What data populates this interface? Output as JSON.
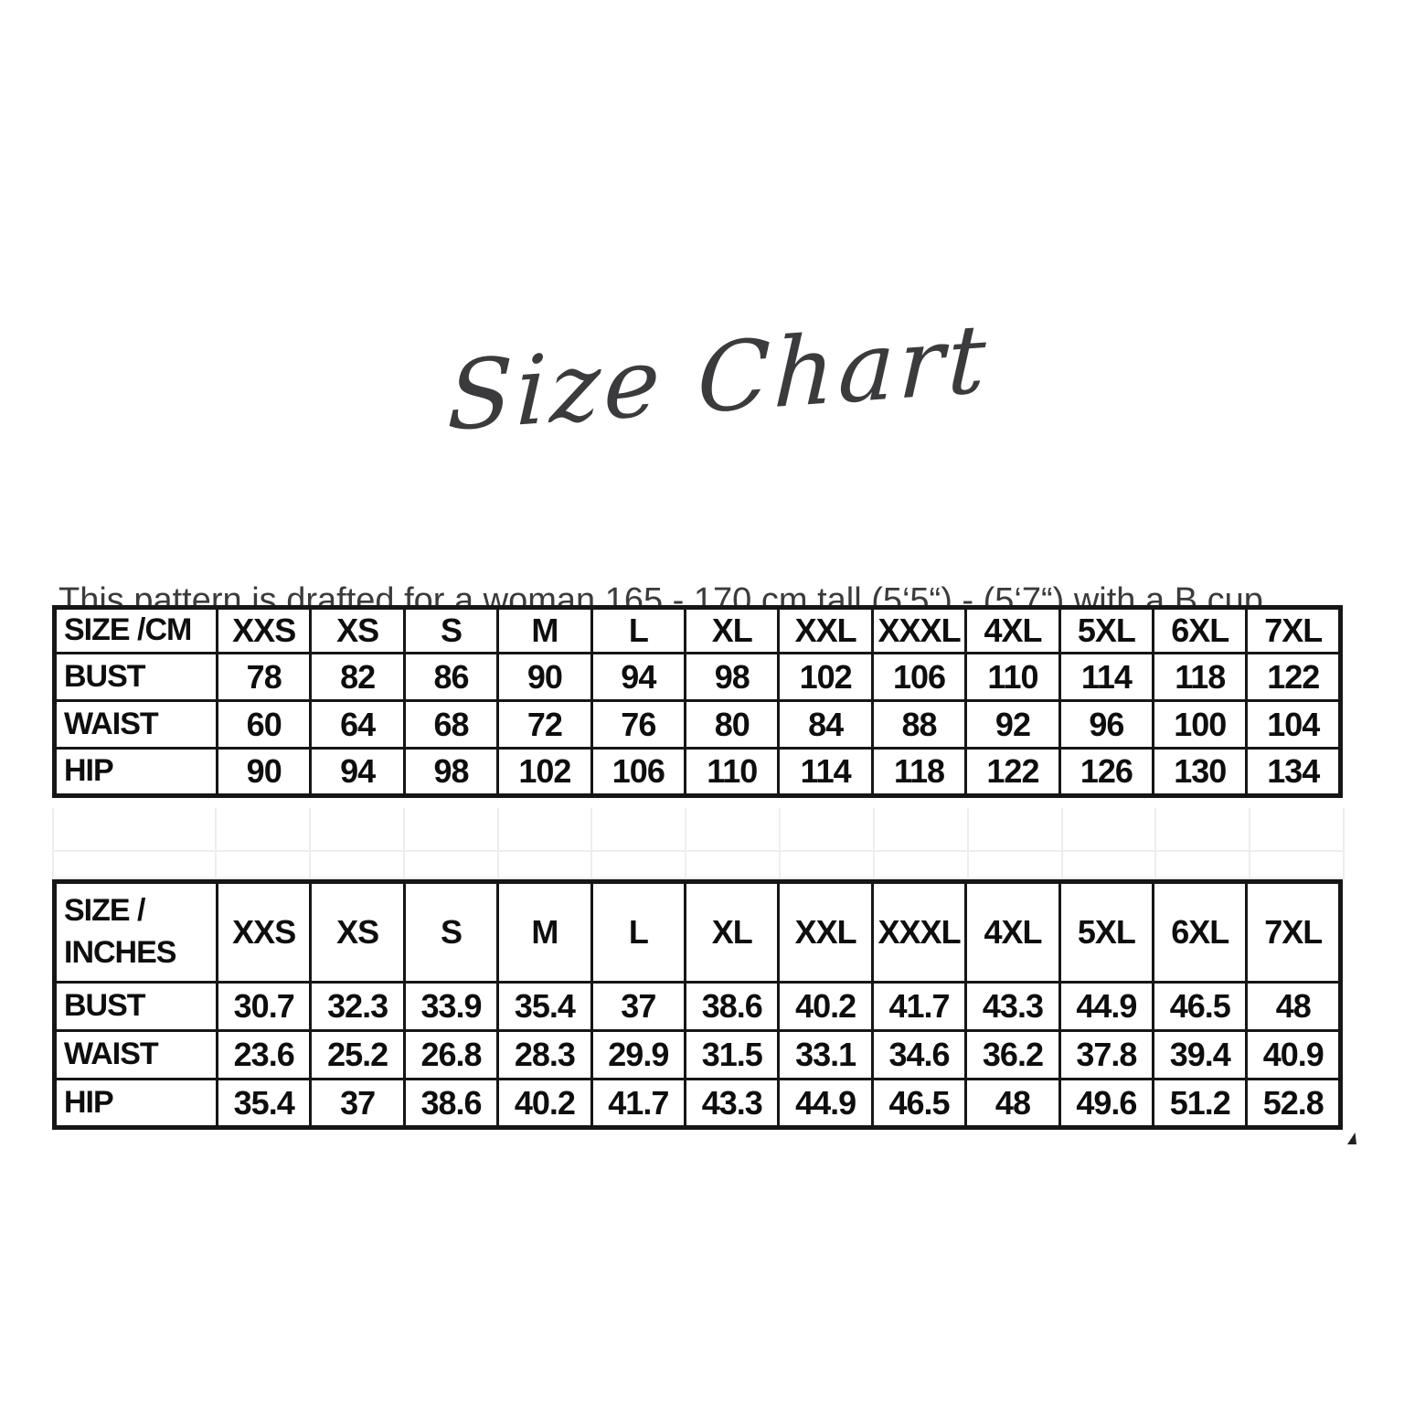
{
  "page": {
    "title": "Size Chart",
    "description": "This pattern is drafted for a woman 165 - 170 cm tall (5‘5“) - (5‘7“) with a B cup"
  },
  "tables": [
    {
      "id": "cm",
      "unit_header": "SIZE /CM",
      "sizes": [
        "XXS",
        "XS",
        "S",
        "M",
        "L",
        "XL",
        "XXL",
        "XXXL",
        "4XL",
        "5XL",
        "6XL",
        "7XL"
      ],
      "rows": [
        {
          "label": "BUST",
          "values": [
            "78",
            "82",
            "86",
            "90",
            "94",
            "98",
            "102",
            "106",
            "110",
            "114",
            "118",
            "122"
          ]
        },
        {
          "label": "WAIST",
          "values": [
            "60",
            "64",
            "68",
            "72",
            "76",
            "80",
            "84",
            "88",
            "92",
            "96",
            "100",
            "104"
          ]
        },
        {
          "label": "HIP",
          "values": [
            "90",
            "94",
            "98",
            "102",
            "106",
            "110",
            "114",
            "118",
            "122",
            "126",
            "130",
            "134"
          ]
        }
      ]
    },
    {
      "id": "inches",
      "unit_header": "SIZE / INCHES",
      "sizes": [
        "XXS",
        "XS",
        "S",
        "M",
        "L",
        "XL",
        "XXL",
        "XXXL",
        "4XL",
        "5XL",
        "6XL",
        "7XL"
      ],
      "rows": [
        {
          "label": "BUST",
          "values": [
            "30.7",
            "32.3",
            "33.9",
            "35.4",
            "37",
            "38.6",
            "40.2",
            "41.7",
            "43.3",
            "44.9",
            "46.5",
            "48"
          ]
        },
        {
          "label": "WAIST",
          "values": [
            "23.6",
            "25.2",
            "26.8",
            "28.3",
            "29.9",
            "31.5",
            "33.1",
            "34.6",
            "36.2",
            "37.8",
            "39.4",
            "40.9"
          ]
        },
        {
          "label": "HIP",
          "values": [
            "35.4",
            "37",
            "38.6",
            "40.2",
            "41.7",
            "43.3",
            "44.9",
            "46.5",
            "48",
            "49.6",
            "51.2",
            "52.8"
          ]
        }
      ]
    }
  ],
  "colors": {
    "background": "#ffffff",
    "table_border": "#161616",
    "table_text": "#0e0e0e",
    "title_text": "#3b3b3e",
    "description_text": "#3b3b3b",
    "faint_gridline": "#ededed"
  }
}
